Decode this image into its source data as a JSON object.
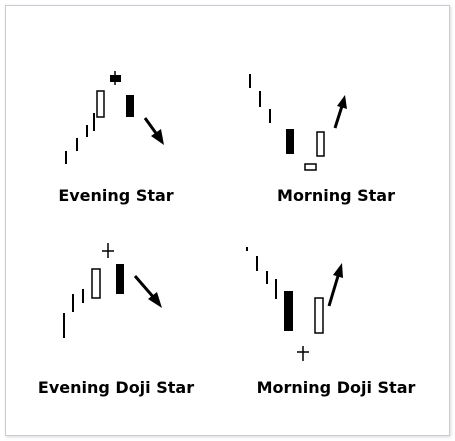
{
  "patterns": [
    {
      "name": "Evening Star"
    },
    {
      "name": "Morning Star"
    },
    {
      "name": "Evening Doji Star"
    },
    {
      "name": "Morning Doji Star"
    }
  ],
  "colors": {
    "candle": "#000000",
    "hollow": "#ffffff",
    "border": "#c8cdd3"
  }
}
